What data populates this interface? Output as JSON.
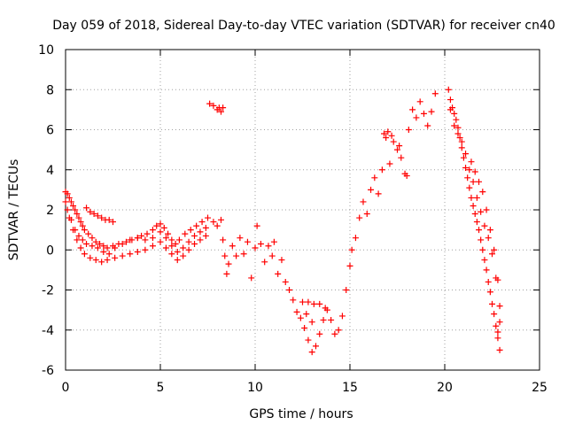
{
  "chart_data": {
    "type": "scatter",
    "title": "Day 059 of 2018, Sidereal Day-to-day VTEC variation (SDTVAR) for receiver cn40",
    "xlabel": "GPS time / hours",
    "ylabel": "SDTVAR / TECUs",
    "xlim": [
      0,
      25
    ],
    "ylim": [
      -6,
      10
    ],
    "xticks": [
      "0",
      "5",
      "10",
      "15",
      "20",
      "25"
    ],
    "yticks": [
      "-6",
      "-4",
      "-2",
      "0",
      "2",
      "4",
      "6",
      "8",
      "10"
    ],
    "grid": true,
    "marker": "+",
    "series": [
      {
        "name": "SDTVAR",
        "color": "#ff0000",
        "points": [
          [
            0.0,
            2.9
          ],
          [
            0.1,
            2.8
          ],
          [
            0.2,
            2.6
          ],
          [
            0.3,
            2.4
          ],
          [
            0.4,
            2.2
          ],
          [
            0.5,
            2.0
          ],
          [
            0.6,
            1.8
          ],
          [
            0.7,
            1.6
          ],
          [
            0.8,
            1.4
          ],
          [
            0.9,
            1.2
          ],
          [
            1.0,
            1.0
          ],
          [
            1.2,
            0.8
          ],
          [
            1.4,
            0.6
          ],
          [
            1.6,
            0.4
          ],
          [
            1.8,
            0.3
          ],
          [
            2.0,
            0.2
          ],
          [
            2.2,
            0.1
          ],
          [
            2.5,
            0.2
          ],
          [
            2.8,
            0.3
          ],
          [
            3.2,
            0.4
          ],
          [
            3.5,
            0.5
          ],
          [
            3.8,
            0.6
          ],
          [
            4.0,
            0.7
          ],
          [
            4.3,
            0.8
          ],
          [
            4.6,
            1.0
          ],
          [
            4.8,
            1.2
          ],
          [
            5.0,
            1.3
          ],
          [
            5.2,
            1.1
          ],
          [
            5.4,
            0.8
          ],
          [
            5.6,
            0.5
          ],
          [
            5.8,
            0.3
          ],
          [
            6.0,
            0.5
          ],
          [
            6.3,
            0.8
          ],
          [
            6.6,
            1.0
          ],
          [
            6.9,
            1.2
          ],
          [
            7.2,
            1.4
          ],
          [
            7.5,
            1.6
          ],
          [
            7.8,
            1.4
          ],
          [
            8.0,
            1.2
          ],
          [
            8.2,
            1.5
          ],
          [
            0.0,
            2.4
          ],
          [
            0.2,
            1.6
          ],
          [
            0.4,
            1.0
          ],
          [
            0.6,
            0.5
          ],
          [
            0.8,
            0.1
          ],
          [
            1.0,
            -0.2
          ],
          [
            1.3,
            -0.4
          ],
          [
            1.6,
            -0.5
          ],
          [
            1.9,
            -0.6
          ],
          [
            2.2,
            -0.5
          ],
          [
            2.6,
            -0.4
          ],
          [
            3.0,
            -0.3
          ],
          [
            3.4,
            -0.2
          ],
          [
            3.8,
            -0.1
          ],
          [
            4.2,
            0.0
          ],
          [
            4.6,
            0.2
          ],
          [
            5.0,
            0.4
          ],
          [
            5.3,
            0.1
          ],
          [
            5.6,
            -0.2
          ],
          [
            5.9,
            -0.5
          ],
          [
            6.2,
            -0.3
          ],
          [
            6.5,
            0.0
          ],
          [
            6.8,
            0.3
          ],
          [
            7.1,
            0.5
          ],
          [
            7.4,
            0.7
          ],
          [
            0.1,
            2.0
          ],
          [
            0.3,
            1.5
          ],
          [
            0.5,
            1.0
          ],
          [
            0.7,
            0.7
          ],
          [
            0.9,
            0.5
          ],
          [
            1.1,
            0.3
          ],
          [
            1.4,
            0.2
          ],
          [
            1.7,
            0.1
          ],
          [
            2.0,
            -0.1
          ],
          [
            2.3,
            -0.2
          ],
          [
            2.6,
            0.1
          ],
          [
            3.0,
            0.3
          ],
          [
            3.4,
            0.5
          ],
          [
            3.8,
            0.6
          ],
          [
            4.2,
            0.5
          ],
          [
            4.6,
            0.6
          ],
          [
            5.0,
            0.9
          ],
          [
            5.3,
            0.6
          ],
          [
            5.6,
            0.2
          ],
          [
            5.9,
            -0.1
          ],
          [
            6.2,
            0.1
          ],
          [
            6.5,
            0.4
          ],
          [
            6.8,
            0.7
          ],
          [
            7.1,
            0.9
          ],
          [
            7.4,
            1.1
          ],
          [
            1.1,
            2.1
          ],
          [
            1.3,
            1.9
          ],
          [
            1.5,
            1.8
          ],
          [
            1.7,
            1.7
          ],
          [
            1.9,
            1.6
          ],
          [
            2.1,
            1.5
          ],
          [
            2.3,
            1.5
          ],
          [
            2.5,
            1.4
          ],
          [
            7.6,
            7.3
          ],
          [
            7.8,
            7.2
          ],
          [
            8.0,
            7.0
          ],
          [
            8.1,
            7.1
          ],
          [
            8.2,
            6.9
          ],
          [
            8.3,
            7.1
          ],
          [
            8.3,
            0.5
          ],
          [
            8.4,
            -0.3
          ],
          [
            8.5,
            -1.2
          ],
          [
            8.6,
            -0.7
          ],
          [
            8.8,
            0.2
          ],
          [
            9.0,
            -0.3
          ],
          [
            9.2,
            0.6
          ],
          [
            9.4,
            -0.2
          ],
          [
            9.6,
            0.4
          ],
          [
            9.8,
            -1.4
          ],
          [
            10.0,
            0.1
          ],
          [
            10.1,
            1.2
          ],
          [
            10.3,
            0.3
          ],
          [
            10.5,
            -0.6
          ],
          [
            10.7,
            0.2
          ],
          [
            10.9,
            -0.3
          ],
          [
            11.0,
            0.4
          ],
          [
            11.2,
            -1.2
          ],
          [
            11.4,
            -0.5
          ],
          [
            11.6,
            -1.6
          ],
          [
            11.8,
            -2.0
          ],
          [
            12.0,
            -2.5
          ],
          [
            12.2,
            -3.1
          ],
          [
            12.4,
            -3.4
          ],
          [
            12.6,
            -3.9
          ],
          [
            12.8,
            -4.5
          ],
          [
            13.0,
            -5.1
          ],
          [
            13.2,
            -4.8
          ],
          [
            13.4,
            -4.2
          ],
          [
            13.6,
            -3.5
          ],
          [
            13.8,
            -3.0
          ],
          [
            14.0,
            -3.5
          ],
          [
            14.2,
            -4.2
          ],
          [
            14.4,
            -4.0
          ],
          [
            14.6,
            -3.3
          ],
          [
            14.8,
            -2.0
          ],
          [
            15.0,
            -0.8
          ],
          [
            15.1,
            0.0
          ],
          [
            15.3,
            0.6
          ],
          [
            15.5,
            1.6
          ],
          [
            15.7,
            2.4
          ],
          [
            15.9,
            1.8
          ],
          [
            16.1,
            3.0
          ],
          [
            16.3,
            3.6
          ],
          [
            16.5,
            2.8
          ],
          [
            16.7,
            4.0
          ],
          [
            16.9,
            5.6
          ],
          [
            17.1,
            4.3
          ],
          [
            17.3,
            5.4
          ],
          [
            17.5,
            5.0
          ],
          [
            17.7,
            4.6
          ],
          [
            17.9,
            3.8
          ],
          [
            18.1,
            6.0
          ],
          [
            18.3,
            7.0
          ],
          [
            18.5,
            6.6
          ],
          [
            18.7,
            7.4
          ],
          [
            18.9,
            6.8
          ],
          [
            19.1,
            6.2
          ],
          [
            19.3,
            6.9
          ],
          [
            19.5,
            7.8
          ],
          [
            12.5,
            -2.6
          ],
          [
            12.8,
            -2.6
          ],
          [
            13.1,
            -2.7
          ],
          [
            13.4,
            -2.7
          ],
          [
            13.7,
            -2.9
          ],
          [
            12.7,
            -3.2
          ],
          [
            13.0,
            -3.6
          ],
          [
            16.8,
            5.8
          ],
          [
            17.0,
            5.9
          ],
          [
            17.2,
            5.7
          ],
          [
            17.6,
            5.2
          ],
          [
            18.0,
            3.7
          ],
          [
            20.2,
            8.0
          ],
          [
            20.3,
            7.5
          ],
          [
            20.4,
            7.1
          ],
          [
            20.5,
            6.8
          ],
          [
            20.6,
            6.5
          ],
          [
            20.7,
            6.1
          ],
          [
            20.8,
            5.6
          ],
          [
            20.9,
            5.1
          ],
          [
            21.0,
            4.6
          ],
          [
            21.1,
            4.1
          ],
          [
            21.2,
            3.6
          ],
          [
            21.3,
            3.1
          ],
          [
            21.4,
            2.6
          ],
          [
            21.5,
            2.2
          ],
          [
            21.6,
            1.8
          ],
          [
            21.7,
            1.4
          ],
          [
            21.8,
            1.0
          ],
          [
            21.9,
            0.5
          ],
          [
            22.0,
            0.0
          ],
          [
            22.1,
            -0.5
          ],
          [
            22.2,
            -1.0
          ],
          [
            22.3,
            -1.6
          ],
          [
            22.4,
            -2.1
          ],
          [
            22.5,
            -2.7
          ],
          [
            22.6,
            -3.2
          ],
          [
            22.7,
            -3.8
          ],
          [
            22.8,
            -4.4
          ],
          [
            22.9,
            -5.0
          ],
          [
            20.3,
            7.0
          ],
          [
            20.5,
            6.2
          ],
          [
            20.7,
            5.8
          ],
          [
            20.9,
            5.4
          ],
          [
            21.1,
            4.8
          ],
          [
            21.3,
            4.0
          ],
          [
            21.5,
            3.4
          ],
          [
            21.7,
            2.6
          ],
          [
            21.9,
            1.9
          ],
          [
            22.1,
            1.2
          ],
          [
            22.3,
            0.6
          ],
          [
            22.5,
            -0.2
          ],
          [
            22.7,
            -1.4
          ],
          [
            22.9,
            -2.8
          ],
          [
            21.4,
            4.4
          ],
          [
            21.6,
            3.9
          ],
          [
            21.8,
            3.4
          ],
          [
            22.0,
            2.9
          ],
          [
            22.2,
            2.0
          ],
          [
            22.4,
            1.0
          ],
          [
            22.6,
            0.0
          ],
          [
            22.8,
            -1.5
          ],
          [
            22.9,
            -3.6
          ],
          [
            22.8,
            -4.1
          ]
        ]
      }
    ]
  }
}
